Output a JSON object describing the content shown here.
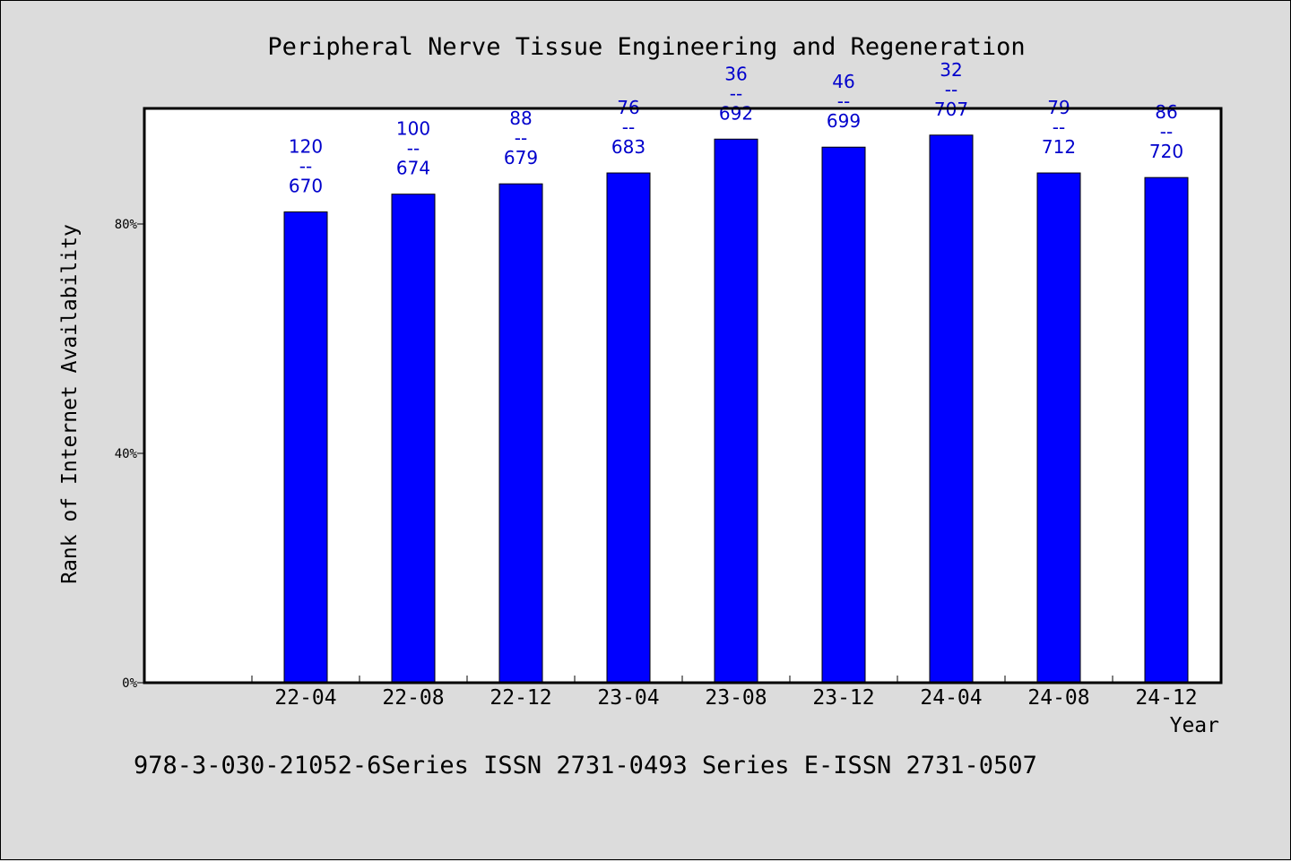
{
  "chart_data": {
    "type": "bar",
    "title": "Peripheral Nerve Tissue Engineering and Regeneration",
    "xlabel": "Year",
    "ylabel": "Rank of Internet Availability",
    "ylim": [
      0,
      100
    ],
    "yticks": [
      {
        "value": 0,
        "label": "0%"
      },
      {
        "value": 40,
        "label": "40%"
      },
      {
        "value": 80,
        "label": "80%"
      }
    ],
    "categories": [
      "22-04",
      "22-08",
      "22-12",
      "23-04",
      "23-08",
      "23-12",
      "24-04",
      "24-08",
      "24-12"
    ],
    "values": [
      82.1,
      85.2,
      87.0,
      88.9,
      94.8,
      93.4,
      95.5,
      88.9,
      88.1
    ],
    "bar_labels": [
      {
        "rank": "120",
        "sep": "--",
        "total": "670"
      },
      {
        "rank": "100",
        "sep": "--",
        "total": "674"
      },
      {
        "rank": "88",
        "sep": "--",
        "total": "679"
      },
      {
        "rank": "76",
        "sep": "--",
        "total": "683"
      },
      {
        "rank": "36",
        "sep": "--",
        "total": "692"
      },
      {
        "rank": "46",
        "sep": "--",
        "total": "699"
      },
      {
        "rank": "32",
        "sep": "--",
        "total": "707"
      },
      {
        "rank": "79",
        "sep": "--",
        "total": "712"
      },
      {
        "rank": "86",
        "sep": "--",
        "total": "720"
      }
    ],
    "colors": {
      "bar": "#0000ff",
      "bar_label": "#0000cc",
      "plot_bg": "#ffffff",
      "page_bg": "#dcdcdc"
    },
    "grid": false,
    "legend": "none"
  },
  "footer": "978-3-030-21052-6Series ISSN 2731-0493 Series E-ISSN 2731-0507"
}
